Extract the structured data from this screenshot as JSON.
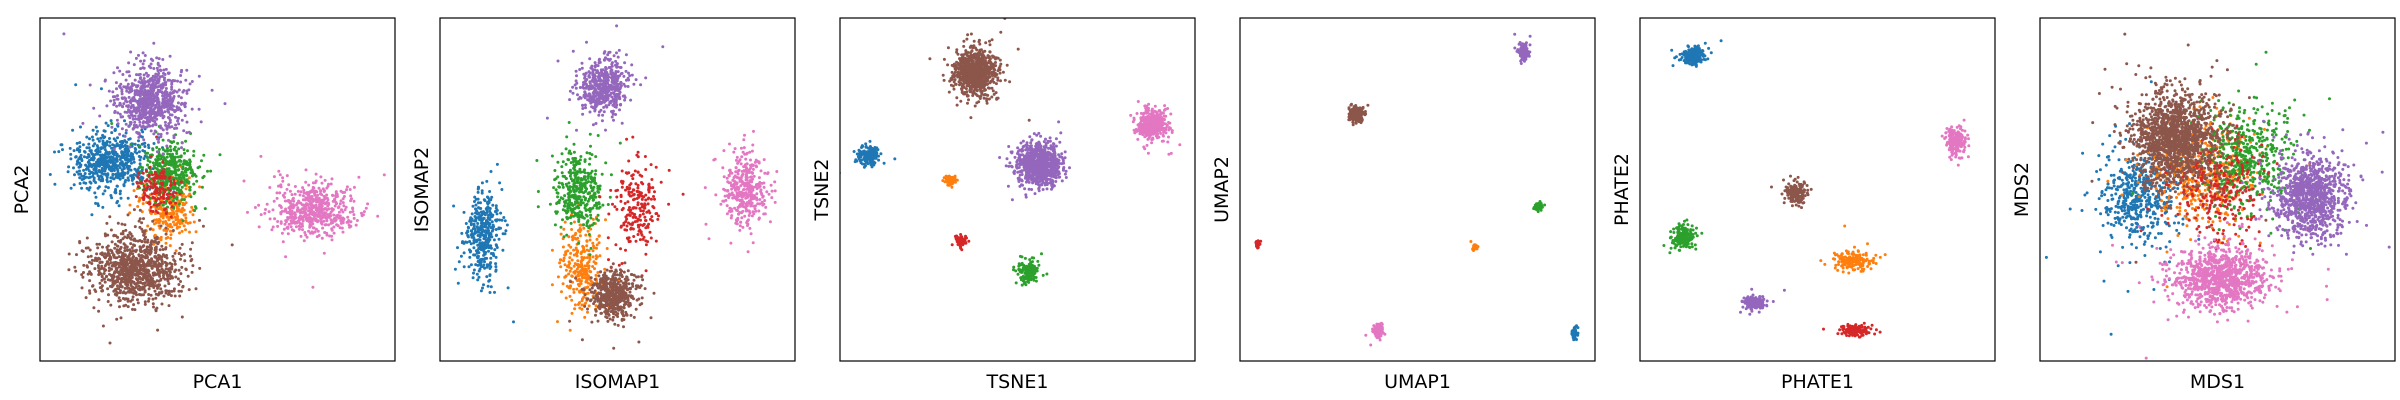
{
  "colors": {
    "blue": "#1f77b4",
    "orange": "#ff7f0e",
    "green": "#2ca02c",
    "red": "#d62728",
    "purple": "#9467bd",
    "brown": "#8c564b",
    "pink": "#e377c2"
  },
  "chart_data": [
    {
      "type": "scatter",
      "xlabel": "PCA1",
      "ylabel": "PCA2",
      "ticks": false,
      "legend": "none",
      "clusters": [
        {
          "color": "blue",
          "center": [
            0.2,
            0.42
          ],
          "spread": [
            0.1,
            0.08
          ],
          "n": 1100
        },
        {
          "color": "orange",
          "center": [
            0.36,
            0.56
          ],
          "spread": [
            0.07,
            0.09
          ],
          "n": 500
        },
        {
          "color": "green",
          "center": [
            0.37,
            0.45
          ],
          "spread": [
            0.07,
            0.08
          ],
          "n": 700
        },
        {
          "color": "red",
          "center": [
            0.33,
            0.5
          ],
          "spread": [
            0.05,
            0.06
          ],
          "n": 250
        },
        {
          "color": "purple",
          "center": [
            0.31,
            0.24
          ],
          "spread": [
            0.09,
            0.09
          ],
          "n": 1400
        },
        {
          "color": "brown",
          "center": [
            0.27,
            0.73
          ],
          "spread": [
            0.11,
            0.09
          ],
          "n": 1700
        },
        {
          "color": "pink",
          "center": [
            0.77,
            0.56
          ],
          "spread": [
            0.1,
            0.07
          ],
          "n": 1000
        }
      ]
    },
    {
      "type": "scatter",
      "xlabel": "ISOMAP1",
      "ylabel": "ISOMAP2",
      "ticks": false,
      "legend": "none",
      "clusters": [
        {
          "color": "blue",
          "center": [
            0.12,
            0.64
          ],
          "spread": [
            0.05,
            0.12
          ],
          "n": 700
        },
        {
          "color": "orange",
          "center": [
            0.4,
            0.72
          ],
          "spread": [
            0.05,
            0.12
          ],
          "n": 500
        },
        {
          "color": "green",
          "center": [
            0.39,
            0.5
          ],
          "spread": [
            0.06,
            0.1
          ],
          "n": 700
        },
        {
          "color": "red",
          "center": [
            0.56,
            0.55
          ],
          "spread": [
            0.06,
            0.12
          ],
          "n": 400
        },
        {
          "color": "purple",
          "center": [
            0.46,
            0.2
          ],
          "spread": [
            0.06,
            0.07
          ],
          "n": 900
        },
        {
          "color": "brown",
          "center": [
            0.49,
            0.81
          ],
          "spread": [
            0.06,
            0.06
          ],
          "n": 900
        },
        {
          "color": "pink",
          "center": [
            0.86,
            0.5
          ],
          "spread": [
            0.05,
            0.1
          ],
          "n": 700
        }
      ]
    },
    {
      "type": "scatter",
      "xlabel": "TSNE1",
      "ylabel": "TSNE2",
      "ticks": false,
      "legend": "none",
      "clusters": [
        {
          "color": "blue",
          "center": [
            0.08,
            0.4
          ],
          "spread": [
            0.025,
            0.025
          ],
          "n": 350
        },
        {
          "color": "orange",
          "center": [
            0.31,
            0.47
          ],
          "spread": [
            0.015,
            0.015
          ],
          "n": 120
        },
        {
          "color": "green",
          "center": [
            0.53,
            0.74
          ],
          "spread": [
            0.025,
            0.025
          ],
          "n": 350
        },
        {
          "color": "red",
          "center": [
            0.34,
            0.65
          ],
          "spread": [
            0.015,
            0.015
          ],
          "n": 120
        },
        {
          "color": "purple",
          "center": [
            0.56,
            0.43
          ],
          "spread": [
            0.055,
            0.055
          ],
          "n": 1500
        },
        {
          "color": "brown",
          "center": [
            0.38,
            0.16
          ],
          "spread": [
            0.055,
            0.06
          ],
          "n": 1500
        },
        {
          "color": "pink",
          "center": [
            0.88,
            0.31
          ],
          "spread": [
            0.04,
            0.04
          ],
          "n": 700
        }
      ]
    },
    {
      "type": "scatter",
      "xlabel": "UMAP1",
      "ylabel": "UMAP2",
      "ticks": false,
      "legend": "none",
      "clusters": [
        {
          "color": "blue",
          "center": [
            0.94,
            0.92
          ],
          "spread": [
            0.008,
            0.015
          ],
          "n": 120
        },
        {
          "color": "orange",
          "center": [
            0.66,
            0.67
          ],
          "spread": [
            0.006,
            0.006
          ],
          "n": 60
        },
        {
          "color": "green",
          "center": [
            0.84,
            0.55
          ],
          "spread": [
            0.008,
            0.012
          ],
          "n": 120
        },
        {
          "color": "red",
          "center": [
            0.05,
            0.66
          ],
          "spread": [
            0.005,
            0.008
          ],
          "n": 60
        },
        {
          "color": "purple",
          "center": [
            0.8,
            0.1
          ],
          "spread": [
            0.012,
            0.022
          ],
          "n": 350
        },
        {
          "color": "brown",
          "center": [
            0.33,
            0.28
          ],
          "spread": [
            0.018,
            0.018
          ],
          "n": 400
        },
        {
          "color": "pink",
          "center": [
            0.39,
            0.91
          ],
          "spread": [
            0.012,
            0.016
          ],
          "n": 250
        }
      ]
    },
    {
      "type": "scatter",
      "xlabel": "PHATE1",
      "ylabel": "PHATE2",
      "ticks": false,
      "legend": "none",
      "clusters": [
        {
          "color": "blue",
          "center": [
            0.15,
            0.11
          ],
          "spread": [
            0.03,
            0.025
          ],
          "n": 350
        },
        {
          "color": "orange",
          "center": [
            0.6,
            0.71
          ],
          "spread": [
            0.05,
            0.025
          ],
          "n": 300
        },
        {
          "color": "green",
          "center": [
            0.12,
            0.64
          ],
          "spread": [
            0.03,
            0.03
          ],
          "n": 350
        },
        {
          "color": "red",
          "center": [
            0.61,
            0.91
          ],
          "spread": [
            0.035,
            0.015
          ],
          "n": 250
        },
        {
          "color": "purple",
          "center": [
            0.32,
            0.83
          ],
          "spread": [
            0.03,
            0.02
          ],
          "n": 300
        },
        {
          "color": "brown",
          "center": [
            0.44,
            0.51
          ],
          "spread": [
            0.03,
            0.03
          ],
          "n": 300
        },
        {
          "color": "pink",
          "center": [
            0.89,
            0.36
          ],
          "spread": [
            0.025,
            0.04
          ],
          "n": 350
        }
      ]
    },
    {
      "type": "scatter",
      "xlabel": "MDS1",
      "ylabel": "MDS2",
      "ticks": false,
      "legend": "none",
      "clusters": [
        {
          "color": "blue",
          "center": [
            0.28,
            0.53
          ],
          "spread": [
            0.1,
            0.12
          ],
          "n": 900
        },
        {
          "color": "orange",
          "center": [
            0.45,
            0.45
          ],
          "spread": [
            0.13,
            0.13
          ],
          "n": 900
        },
        {
          "color": "green",
          "center": [
            0.58,
            0.4
          ],
          "spread": [
            0.13,
            0.14
          ],
          "n": 900
        },
        {
          "color": "red",
          "center": [
            0.5,
            0.5
          ],
          "spread": [
            0.12,
            0.13
          ],
          "n": 500
        },
        {
          "color": "pink",
          "center": [
            0.51,
            0.76
          ],
          "spread": [
            0.13,
            0.08
          ],
          "n": 1800
        },
        {
          "color": "purple",
          "center": [
            0.76,
            0.52
          ],
          "spread": [
            0.09,
            0.11
          ],
          "n": 1800
        },
        {
          "color": "brown",
          "center": [
            0.38,
            0.35
          ],
          "spread": [
            0.11,
            0.12
          ],
          "n": 2600
        }
      ]
    }
  ]
}
